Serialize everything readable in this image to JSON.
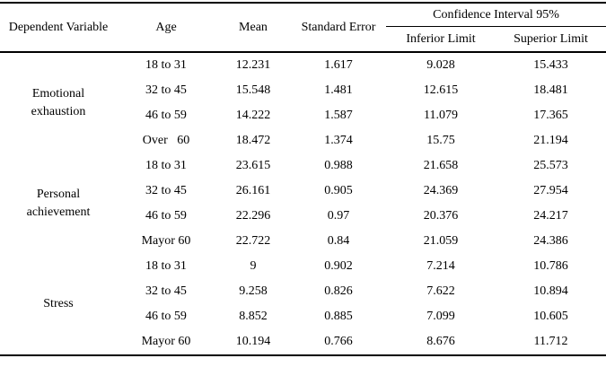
{
  "table": {
    "headers": {
      "dependent_variable": "Dependent Variable",
      "age": "Age",
      "mean": "Mean",
      "standard_error": "Standard Error",
      "confidence_interval": "Confidence Interval 95%",
      "inferior_limit": "Inferior Limit",
      "superior_limit": "Superior Limit"
    },
    "groups": [
      {
        "variable": "Emotional exhaustion",
        "rows": [
          {
            "age": "18 to 31",
            "mean": "12.231",
            "se": "1.617",
            "inf": "9.028",
            "sup": "15.433"
          },
          {
            "age": "32 to 45",
            "mean": "15.548",
            "se": "1.481",
            "inf": "12.615",
            "sup": "18.481"
          },
          {
            "age": "46 to 59",
            "mean": "14.222",
            "se": "1.587",
            "inf": "11.079",
            "sup": "17.365"
          },
          {
            "age": "Over   60",
            "mean": "18.472",
            "se": "1.374",
            "inf": "15.75",
            "sup": "21.194"
          }
        ]
      },
      {
        "variable": "Personal achievement",
        "rows": [
          {
            "age": "18 to 31",
            "mean": "23.615",
            "se": "0.988",
            "inf": "21.658",
            "sup": "25.573"
          },
          {
            "age": "32 to 45",
            "mean": "26.161",
            "se": "0.905",
            "inf": "24.369",
            "sup": "27.954"
          },
          {
            "age": "46 to 59",
            "mean": "22.296",
            "se": "0.97",
            "inf": "20.376",
            "sup": "24.217"
          },
          {
            "age": "Mayor 60",
            "mean": "22.722",
            "se": "0.84",
            "inf": "21.059",
            "sup": "24.386"
          }
        ]
      },
      {
        "variable": "Stress",
        "rows": [
          {
            "age": "18 to 31",
            "mean": "9",
            "se": "0.902",
            "inf": "7.214",
            "sup": "10.786"
          },
          {
            "age": "32 to 45",
            "mean": "9.258",
            "se": "0.826",
            "inf": "7.622",
            "sup": "10.894"
          },
          {
            "age": "46 to 59",
            "mean": "8.852",
            "se": "0.885",
            "inf": "7.099",
            "sup": "10.605"
          },
          {
            "age": "Mayor 60",
            "mean": "10.194",
            "se": "0.766",
            "inf": "8.676",
            "sup": "11.712"
          }
        ]
      }
    ]
  },
  "colors": {
    "border": "#000000",
    "text": "#000000",
    "background": "#ffffff"
  }
}
